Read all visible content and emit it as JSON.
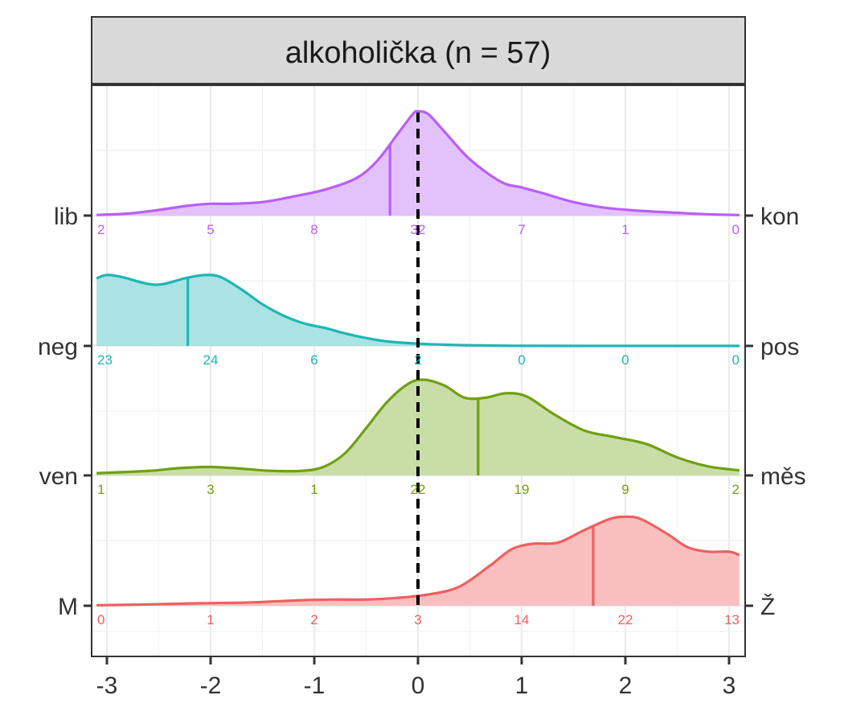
{
  "chart_data": {
    "type": "ridgeline-density",
    "title": "alkoholička (n = 57)",
    "xlabel": "",
    "ylabel": "",
    "x_ticks": [
      "-3",
      "-2",
      "-1",
      "0",
      "1",
      "2",
      "3"
    ],
    "xlim": [
      -3.1,
      3.1
    ],
    "reference_line_x": 0,
    "grid": true,
    "series": [
      {
        "left_label": "lib",
        "right_label": "kon",
        "color": "#B95EF9",
        "fill": "#E1BFFC",
        "mean": -0.27,
        "counts": [
          "2",
          "5",
          "8",
          "32",
          "7",
          "1",
          "0"
        ],
        "density": [
          [
            -3.1,
            0.006
          ],
          [
            -2.8,
            0.018
          ],
          [
            -2.5,
            0.05
          ],
          [
            -2.2,
            0.09
          ],
          [
            -2.0,
            0.105
          ],
          [
            -1.8,
            0.105
          ],
          [
            -1.5,
            0.12
          ],
          [
            -1.2,
            0.17
          ],
          [
            -0.9,
            0.23
          ],
          [
            -0.6,
            0.33
          ],
          [
            -0.4,
            0.48
          ],
          [
            -0.2,
            0.72
          ],
          [
            -0.05,
            0.9
          ],
          [
            0.0,
            0.925
          ],
          [
            0.1,
            0.9
          ],
          [
            0.25,
            0.75
          ],
          [
            0.5,
            0.5
          ],
          [
            0.8,
            0.3
          ],
          [
            1.0,
            0.25
          ],
          [
            1.2,
            0.2
          ],
          [
            1.5,
            0.12
          ],
          [
            1.8,
            0.07
          ],
          [
            2.1,
            0.045
          ],
          [
            2.5,
            0.025
          ],
          [
            2.8,
            0.012
          ],
          [
            3.1,
            0.005
          ]
        ]
      },
      {
        "left_label": "neg",
        "right_label": "pos",
        "color": "#1FB5B5",
        "fill": "#A4E1E1",
        "mean": -2.22,
        "counts": [
          "23",
          "24",
          "6",
          "2",
          "0",
          "0",
          "0"
        ],
        "density": [
          [
            -3.1,
            0.6
          ],
          [
            -3.0,
            0.63
          ],
          [
            -2.85,
            0.61
          ],
          [
            -2.6,
            0.55
          ],
          [
            -2.45,
            0.55
          ],
          [
            -2.25,
            0.6
          ],
          [
            -2.05,
            0.63
          ],
          [
            -1.9,
            0.61
          ],
          [
            -1.7,
            0.5
          ],
          [
            -1.5,
            0.37
          ],
          [
            -1.3,
            0.27
          ],
          [
            -1.1,
            0.2
          ],
          [
            -0.9,
            0.16
          ],
          [
            -0.7,
            0.11
          ],
          [
            -0.5,
            0.07
          ],
          [
            -0.3,
            0.04
          ],
          [
            0.0,
            0.02
          ],
          [
            0.3,
            0.01
          ],
          [
            0.6,
            0.004
          ],
          [
            1.0,
            0.001
          ],
          [
            2.0,
            0.0
          ],
          [
            3.1,
            0.0
          ]
        ]
      },
      {
        "left_label": "ven",
        "right_label": "měs",
        "color": "#6FA012",
        "fill": "#C6DCA2",
        "mean": 0.58,
        "counts": [
          "1",
          "3",
          "1",
          "22",
          "19",
          "9",
          "2"
        ],
        "density": [
          [
            -3.1,
            0.02
          ],
          [
            -2.6,
            0.04
          ],
          [
            -2.3,
            0.065
          ],
          [
            -2.0,
            0.075
          ],
          [
            -1.7,
            0.06
          ],
          [
            -1.4,
            0.04
          ],
          [
            -1.1,
            0.042
          ],
          [
            -0.9,
            0.08
          ],
          [
            -0.7,
            0.2
          ],
          [
            -0.5,
            0.42
          ],
          [
            -0.3,
            0.65
          ],
          [
            -0.1,
            0.81
          ],
          [
            0.05,
            0.85
          ],
          [
            0.25,
            0.8
          ],
          [
            0.45,
            0.69
          ],
          [
            0.65,
            0.69
          ],
          [
            0.85,
            0.73
          ],
          [
            1.05,
            0.7
          ],
          [
            1.3,
            0.55
          ],
          [
            1.6,
            0.4
          ],
          [
            1.9,
            0.34
          ],
          [
            2.2,
            0.28
          ],
          [
            2.5,
            0.16
          ],
          [
            2.8,
            0.08
          ],
          [
            3.1,
            0.045
          ]
        ]
      },
      {
        "left_label": "M",
        "right_label": "Ž",
        "color": "#F05F5F",
        "fill": "#F9BCBC",
        "mean": 1.69,
        "counts": [
          "0",
          "1",
          "2",
          "3",
          "14",
          "22",
          "13"
        ],
        "density": [
          [
            -3.1,
            0.004
          ],
          [
            -2.6,
            0.012
          ],
          [
            -2.1,
            0.022
          ],
          [
            -1.6,
            0.03
          ],
          [
            -1.1,
            0.05
          ],
          [
            -0.8,
            0.055
          ],
          [
            -0.5,
            0.055
          ],
          [
            -0.2,
            0.07
          ],
          [
            0.1,
            0.1
          ],
          [
            0.4,
            0.17
          ],
          [
            0.7,
            0.36
          ],
          [
            0.9,
            0.5
          ],
          [
            1.1,
            0.55
          ],
          [
            1.35,
            0.56
          ],
          [
            1.6,
            0.67
          ],
          [
            1.85,
            0.77
          ],
          [
            2.0,
            0.79
          ],
          [
            2.15,
            0.77
          ],
          [
            2.4,
            0.64
          ],
          [
            2.6,
            0.52
          ],
          [
            2.8,
            0.48
          ],
          [
            3.0,
            0.48
          ],
          [
            3.1,
            0.45
          ]
        ]
      }
    ]
  }
}
